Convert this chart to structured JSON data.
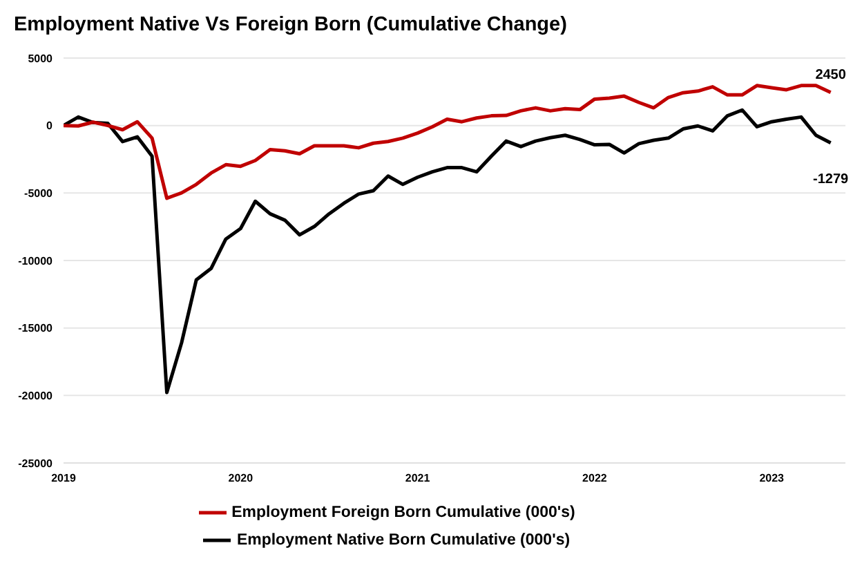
{
  "chart_data": {
    "type": "line",
    "title": "Employment Native Vs Foreign Born (Cumulative Change)",
    "x": [
      "2019-01",
      "2019-02",
      "2019-03",
      "2019-04",
      "2019-05",
      "2019-06",
      "2019-07",
      "2019-08",
      "2019-09",
      "2019-10",
      "2019-11",
      "2019-12",
      "2020-01",
      "2020-02",
      "2020-03",
      "2020-04",
      "2020-05",
      "2020-06",
      "2020-07",
      "2020-08",
      "2020-09",
      "2020-10",
      "2020-11",
      "2020-12",
      "2021-01",
      "2021-02",
      "2021-03",
      "2021-04",
      "2021-05",
      "2021-06",
      "2021-07",
      "2021-08",
      "2021-09",
      "2021-10",
      "2021-11",
      "2021-12",
      "2022-01",
      "2022-02",
      "2022-03",
      "2022-04",
      "2022-05",
      "2022-06",
      "2022-07",
      "2022-08",
      "2022-09",
      "2022-10",
      "2022-11",
      "2022-12",
      "2023-01",
      "2023-02",
      "2023-03",
      "2023-04",
      "2023-05"
    ],
    "series": [
      {
        "name": "Employment Native Born Cumulative (000's)",
        "color": "#000000",
        "values": [
          0,
          630,
          220,
          160,
          -1190,
          -840,
          -2270,
          -19780,
          -16100,
          -11430,
          -10590,
          -8410,
          -7630,
          -5610,
          -6540,
          -7010,
          -8100,
          -7480,
          -6540,
          -5760,
          -5080,
          -4830,
          -3740,
          -4360,
          -3830,
          -3430,
          -3120,
          -3120,
          -3430,
          -2270,
          -1150,
          -1560,
          -1150,
          -900,
          -720,
          -1030,
          -1430,
          -1400,
          -2030,
          -1340,
          -1090,
          -930,
          -250,
          -30,
          -400,
          720,
          1150,
          -90,
          280,
          470,
          630,
          -720,
          -1279
        ]
      },
      {
        "name": "Employment Foreign Born Cumulative (000's)",
        "color": "#c00000",
        "values": [
          0,
          -30,
          250,
          0,
          -310,
          280,
          -930,
          -5390,
          -4990,
          -4360,
          -3520,
          -2900,
          -3020,
          -2590,
          -1780,
          -1870,
          -2090,
          -1500,
          -1500,
          -1500,
          -1650,
          -1310,
          -1180,
          -930,
          -560,
          -90,
          470,
          280,
          560,
          720,
          750,
          1090,
          1310,
          1090,
          1250,
          1180,
          1960,
          2030,
          2180,
          1710,
          1310,
          2080,
          2430,
          2550,
          2870,
          2270,
          2270,
          2960,
          2800,
          2650,
          2960,
          2960,
          2450
        ]
      }
    ],
    "xlim": [
      "2019-01",
      "2023-06"
    ],
    "xticks": [
      {
        "value": "2019-01",
        "label": "2019"
      },
      {
        "value": "2020-01",
        "label": "2020"
      },
      {
        "value": "2021-01",
        "label": "2021"
      },
      {
        "value": "2022-01",
        "label": "2022"
      },
      {
        "value": "2023-01",
        "label": "2023"
      }
    ],
    "ylim": [
      -25000,
      5000
    ],
    "yticks": [
      -25000,
      -20000,
      -15000,
      -10000,
      -5000,
      0,
      5000
    ],
    "annotations": [
      {
        "text": "2450",
        "x": "2023-05",
        "y": 2450
      },
      {
        "text": "-1279",
        "x": "2023-05",
        "y": -1279
      }
    ],
    "grid": "y",
    "legend": "bottom",
    "marker": "none",
    "line_style": "solid"
  }
}
